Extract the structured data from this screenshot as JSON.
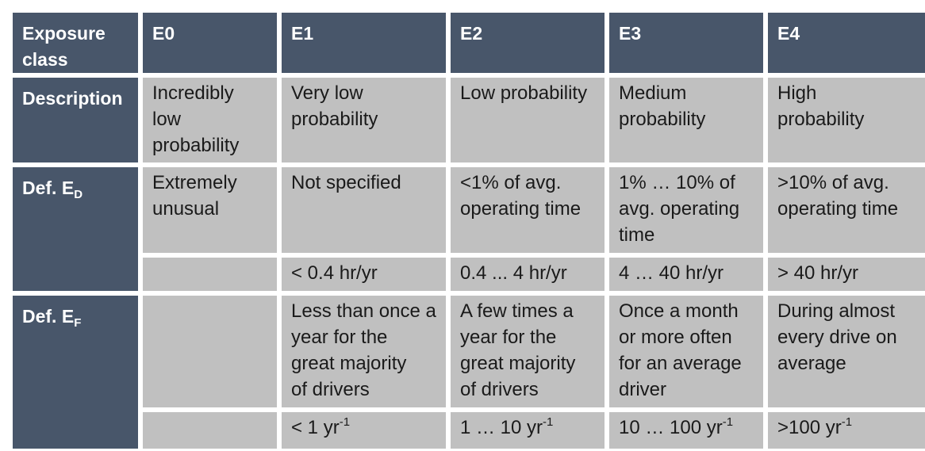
{
  "header": {
    "col0": "Exposure\nclass",
    "classes": [
      "E0",
      "E1",
      "E2",
      "E3",
      "E4"
    ]
  },
  "rows": {
    "description": {
      "label": "Description",
      "cells": [
        "Incredibly\nlow\nprobability",
        "Very low\nprobability",
        "Low probability",
        "Medium\nprobability",
        "High\nprobability"
      ]
    },
    "def_ed": {
      "label_main": "Def. E",
      "label_sub": "D",
      "cells": [
        "Extremely\nunusual",
        "Not specified",
        "<1% of avg.\noperating time",
        "1% … 10% of\navg. operating\ntime",
        ">10% of avg.\noperating time"
      ],
      "hours": [
        "",
        "< 0.4 hr/yr",
        "0.4 ... 4 hr/yr",
        "4 … 40 hr/yr",
        "> 40 hr/yr"
      ]
    },
    "def_ef": {
      "label_main": "Def. E",
      "label_sub": "F",
      "cells": [
        "",
        "Less than once a\nyear for the\ngreat majority\nof drivers",
        "A few times a\nyear for the\ngreat majority\nof drivers",
        "Once a month\nor more often\nfor an average\ndriver",
        "During almost\nevery drive on\naverage"
      ],
      "freq": [
        {
          "text": "",
          "sup": ""
        },
        {
          "text": "< 1 yr",
          "sup": "-1"
        },
        {
          "text": "1 … 10 yr",
          "sup": "-1"
        },
        {
          "text": "10 … 100 yr",
          "sup": "-1"
        },
        {
          "text": ">100 yr",
          "sup": "-1"
        }
      ]
    }
  },
  "colors": {
    "header_bg": "#48566a",
    "body_bg": "#c0c0c0",
    "text_dark": "#1a1a1a",
    "text_light": "#ffffff"
  }
}
